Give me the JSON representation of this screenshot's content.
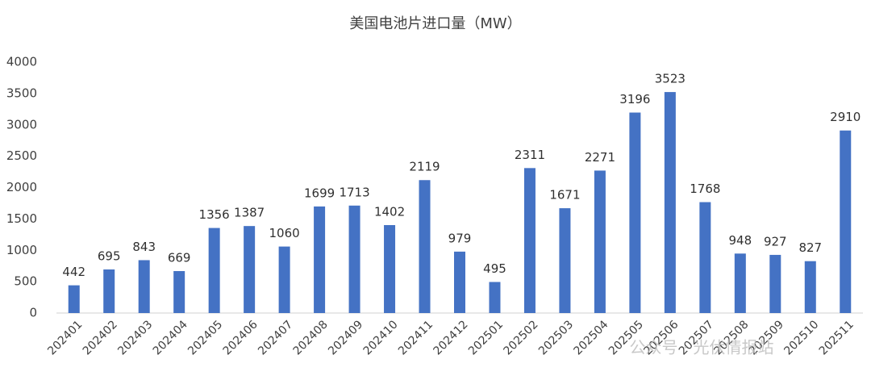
{
  "chart_data": {
    "type": "bar",
    "title": "美国电池片进口量（MW）",
    "categories": [
      "202401",
      "202402",
      "202403",
      "202404",
      "202405",
      "202406",
      "202407",
      "202408",
      "202409",
      "202410",
      "202411",
      "202412",
      "202501",
      "202502",
      "202503",
      "202504",
      "202505",
      "202506",
      "202507",
      "202508",
      "202509",
      "202510",
      "202511"
    ],
    "values": [
      442,
      695,
      843,
      669,
      1356,
      1387,
      1060,
      1699,
      1713,
      1402,
      2119,
      979,
      495,
      2311,
      1671,
      2271,
      3196,
      3523,
      1768,
      948,
      927,
      827,
      2910
    ],
    "color": "#4472c4",
    "ylim": [
      0,
      4000
    ],
    "yticks": [
      0,
      500,
      1000,
      1500,
      2000,
      2500,
      3000,
      3500,
      4000
    ],
    "grid": false,
    "watermark": "公众号 · 光伏情报站"
  }
}
